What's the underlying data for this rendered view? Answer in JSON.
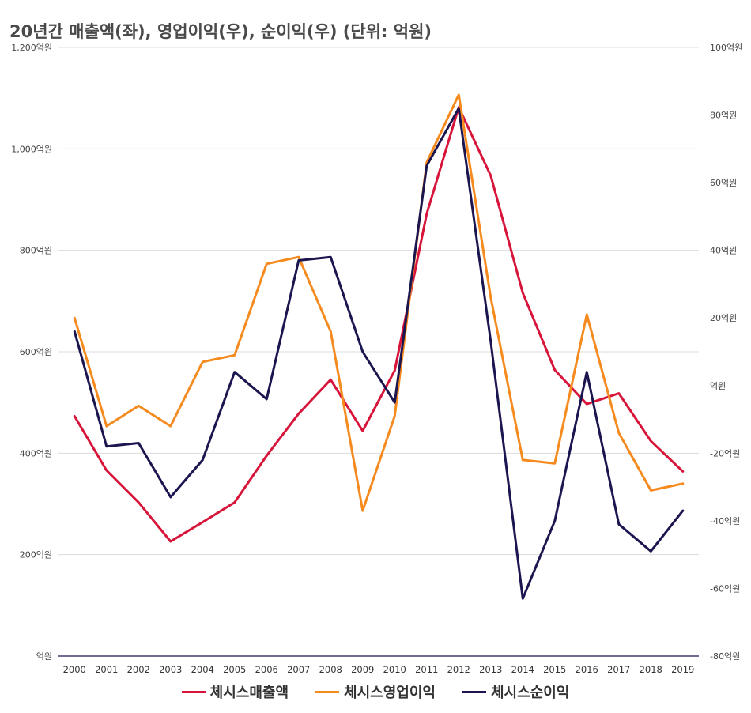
{
  "chart_data": {
    "type": "line",
    "title": "20년간 매출액(좌), 영업이익(우), 순이익(우) (단위: 억원)",
    "categories": [
      "2000",
      "2001",
      "2002",
      "2003",
      "2004",
      "2005",
      "2006",
      "2007",
      "2008",
      "2009",
      "2010",
      "2011",
      "2012",
      "2013",
      "2014",
      "2015",
      "2016",
      "2017",
      "2018",
      "2019"
    ],
    "left_axis": {
      "ylim": [
        0,
        1200
      ],
      "ticks": [
        0,
        200,
        400,
        600,
        800,
        1000,
        1200
      ],
      "tick_labels": [
        "억원",
        "200억원",
        "400억원",
        "600억원",
        "800억원",
        "1,000억원",
        "1,200억원"
      ]
    },
    "right_axis": {
      "ylim": [
        -80,
        100
      ],
      "ticks": [
        -80,
        -60,
        -40,
        -20,
        0,
        20,
        40,
        60,
        80,
        100
      ],
      "tick_labels": [
        "-80억원",
        "-60억원",
        "-40억원",
        "-20억원",
        "억원",
        "20억원",
        "40억원",
        "60억원",
        "80억원",
        "100억원"
      ]
    },
    "grid": true,
    "legend_position": "bottom",
    "series": [
      {
        "name": "체시스매출액",
        "axis": "left",
        "color": "#d7153a",
        "values": [
          473,
          366,
          303,
          226,
          264,
          303,
          395,
          478,
          545,
          444,
          563,
          872,
          1082,
          947,
          716,
          564,
          497,
          518,
          424,
          364
        ]
      },
      {
        "name": "체시스영업이익",
        "axis": "right",
        "color": "#f58a1f",
        "values": [
          20,
          -12,
          -6,
          -12,
          7,
          9,
          36,
          38,
          16,
          -37,
          -9,
          66,
          86,
          26,
          -22,
          -23,
          21,
          -14,
          -31,
          -29
        ]
      },
      {
        "name": "체시스순이익",
        "axis": "right",
        "color": "#1c1650",
        "values": [
          16,
          -18,
          -17,
          -33,
          -22,
          4,
          -4,
          37,
          38,
          10,
          -5,
          65,
          82,
          13,
          -63,
          -40,
          4,
          -41,
          -49,
          -37
        ]
      }
    ]
  }
}
